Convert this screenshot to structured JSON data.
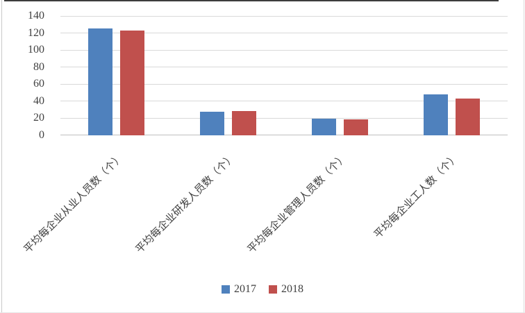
{
  "chart_data": {
    "type": "bar",
    "title": "",
    "xlabel": "",
    "ylabel": "",
    "categories": [
      "平均每企业从业人员数（个）",
      "平均每企业研发人员数（个）",
      "平均每企业管理人员数（个）",
      "平均每企业工人数（个）"
    ],
    "series": [
      {
        "name": "2017",
        "color": "#4F81BD",
        "values": [
          125,
          27,
          19,
          48
        ]
      },
      {
        "name": "2018",
        "color": "#C0504D",
        "values": [
          123,
          28,
          18,
          43
        ]
      }
    ],
    "ylim": [
      0,
      140
    ],
    "y_ticks": [
      0,
      20,
      40,
      60,
      80,
      100,
      120,
      140
    ],
    "grid": true,
    "legend_position": "bottom"
  },
  "colors": {
    "grid": "#d9d9d9",
    "axis": "#bfbfbf",
    "text": "#404040"
  }
}
